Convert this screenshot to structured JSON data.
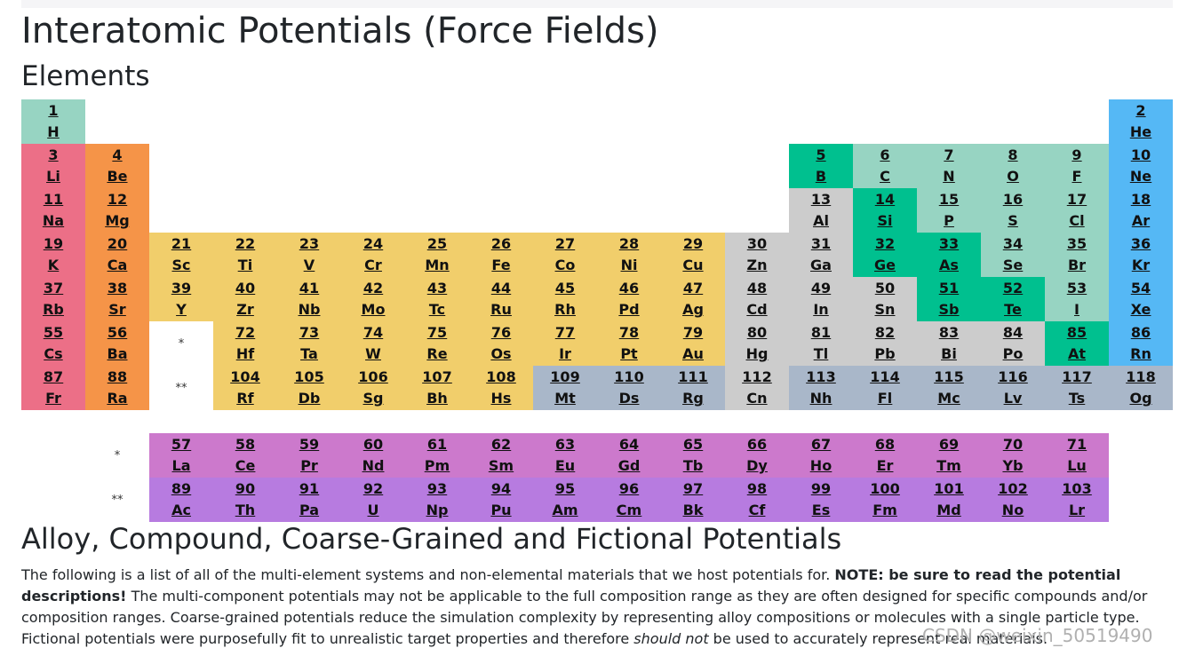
{
  "title": "Interatomic Potentials (Force Fields)",
  "subtitle": "Elements",
  "section2_title": "Alloy, Compound, Coarse-Grained and Fictional Potentials",
  "intro": {
    "part1": "The following is a list of all of the multi-element systems and non-elemental materials that we host potentials for. ",
    "note": "NOTE: be sure to read the potential descriptions!",
    "part2": " The multi-component potentials may not be applicable to the full composition range as they are often designed for specific compounds and/or composition ranges. Coarse-grained potentials reduce the simulation complexity by representing alloy compositions or molecules with a single particle type. Fictional potentials were purposefully fit to unrealistic target properties and therefore ",
    "emph": "should not",
    "part3": " be used to accurately represent real materials."
  },
  "watermark": "CSDN @weixin_50519490",
  "markers": {
    "lanthanide": "*",
    "actinide": "**"
  },
  "colors": {
    "alkali": "#ec6f87",
    "alkaline": "#f59448",
    "transition": "#f1ce6b",
    "post": "#cccccc",
    "metalloid": "#00c08f",
    "nonmetal": "#97d4c2",
    "noble": "#55b8f5",
    "unknown": "#a9b7c9",
    "lanthanide": "#cc79cc",
    "actinide": "#b77be0"
  },
  "elements": [
    {
      "n": "1",
      "s": "H",
      "c": "nonmetal",
      "g": 1,
      "p": 1
    },
    {
      "n": "2",
      "s": "He",
      "c": "noble",
      "g": 18,
      "p": 1
    },
    {
      "n": "3",
      "s": "Li",
      "c": "alkali",
      "g": 1,
      "p": 2
    },
    {
      "n": "4",
      "s": "Be",
      "c": "alkaline",
      "g": 2,
      "p": 2
    },
    {
      "n": "5",
      "s": "B",
      "c": "metalloid",
      "g": 13,
      "p": 2
    },
    {
      "n": "6",
      "s": "C",
      "c": "nonmetal",
      "g": 14,
      "p": 2
    },
    {
      "n": "7",
      "s": "N",
      "c": "nonmetal",
      "g": 15,
      "p": 2
    },
    {
      "n": "8",
      "s": "O",
      "c": "nonmetal",
      "g": 16,
      "p": 2
    },
    {
      "n": "9",
      "s": "F",
      "c": "nonmetal",
      "g": 17,
      "p": 2
    },
    {
      "n": "10",
      "s": "Ne",
      "c": "noble",
      "g": 18,
      "p": 2
    },
    {
      "n": "11",
      "s": "Na",
      "c": "alkali",
      "g": 1,
      "p": 3
    },
    {
      "n": "12",
      "s": "Mg",
      "c": "alkaline",
      "g": 2,
      "p": 3
    },
    {
      "n": "13",
      "s": "Al",
      "c": "post",
      "g": 13,
      "p": 3
    },
    {
      "n": "14",
      "s": "Si",
      "c": "metalloid",
      "g": 14,
      "p": 3
    },
    {
      "n": "15",
      "s": "P",
      "c": "nonmetal",
      "g": 15,
      "p": 3
    },
    {
      "n": "16",
      "s": "S",
      "c": "nonmetal",
      "g": 16,
      "p": 3
    },
    {
      "n": "17",
      "s": "Cl",
      "c": "nonmetal",
      "g": 17,
      "p": 3
    },
    {
      "n": "18",
      "s": "Ar",
      "c": "noble",
      "g": 18,
      "p": 3
    },
    {
      "n": "19",
      "s": "K",
      "c": "alkali",
      "g": 1,
      "p": 4
    },
    {
      "n": "20",
      "s": "Ca",
      "c": "alkaline",
      "g": 2,
      "p": 4
    },
    {
      "n": "21",
      "s": "Sc",
      "c": "transition",
      "g": 3,
      "p": 4
    },
    {
      "n": "22",
      "s": "Ti",
      "c": "transition",
      "g": 4,
      "p": 4
    },
    {
      "n": "23",
      "s": "V",
      "c": "transition",
      "g": 5,
      "p": 4
    },
    {
      "n": "24",
      "s": "Cr",
      "c": "transition",
      "g": 6,
      "p": 4
    },
    {
      "n": "25",
      "s": "Mn",
      "c": "transition",
      "g": 7,
      "p": 4
    },
    {
      "n": "26",
      "s": "Fe",
      "c": "transition",
      "g": 8,
      "p": 4
    },
    {
      "n": "27",
      "s": "Co",
      "c": "transition",
      "g": 9,
      "p": 4
    },
    {
      "n": "28",
      "s": "Ni",
      "c": "transition",
      "g": 10,
      "p": 4
    },
    {
      "n": "29",
      "s": "Cu",
      "c": "transition",
      "g": 11,
      "p": 4
    },
    {
      "n": "30",
      "s": "Zn",
      "c": "post",
      "g": 12,
      "p": 4
    },
    {
      "n": "31",
      "s": "Ga",
      "c": "post",
      "g": 13,
      "p": 4
    },
    {
      "n": "32",
      "s": "Ge",
      "c": "metalloid",
      "g": 14,
      "p": 4
    },
    {
      "n": "33",
      "s": "As",
      "c": "metalloid",
      "g": 15,
      "p": 4
    },
    {
      "n": "34",
      "s": "Se",
      "c": "nonmetal",
      "g": 16,
      "p": 4
    },
    {
      "n": "35",
      "s": "Br",
      "c": "nonmetal",
      "g": 17,
      "p": 4
    },
    {
      "n": "36",
      "s": "Kr",
      "c": "noble",
      "g": 18,
      "p": 4
    },
    {
      "n": "37",
      "s": "Rb",
      "c": "alkali",
      "g": 1,
      "p": 5
    },
    {
      "n": "38",
      "s": "Sr",
      "c": "alkaline",
      "g": 2,
      "p": 5
    },
    {
      "n": "39",
      "s": "Y",
      "c": "transition",
      "g": 3,
      "p": 5
    },
    {
      "n": "40",
      "s": "Zr",
      "c": "transition",
      "g": 4,
      "p": 5
    },
    {
      "n": "41",
      "s": "Nb",
      "c": "transition",
      "g": 5,
      "p": 5
    },
    {
      "n": "42",
      "s": "Mo",
      "c": "transition",
      "g": 6,
      "p": 5
    },
    {
      "n": "43",
      "s": "Tc",
      "c": "transition",
      "g": 7,
      "p": 5
    },
    {
      "n": "44",
      "s": "Ru",
      "c": "transition",
      "g": 8,
      "p": 5
    },
    {
      "n": "45",
      "s": "Rh",
      "c": "transition",
      "g": 9,
      "p": 5
    },
    {
      "n": "46",
      "s": "Pd",
      "c": "transition",
      "g": 10,
      "p": 5
    },
    {
      "n": "47",
      "s": "Ag",
      "c": "transition",
      "g": 11,
      "p": 5
    },
    {
      "n": "48",
      "s": "Cd",
      "c": "post",
      "g": 12,
      "p": 5
    },
    {
      "n": "49",
      "s": "In",
      "c": "post",
      "g": 13,
      "p": 5
    },
    {
      "n": "50",
      "s": "Sn",
      "c": "post",
      "g": 14,
      "p": 5
    },
    {
      "n": "51",
      "s": "Sb",
      "c": "metalloid",
      "g": 15,
      "p": 5
    },
    {
      "n": "52",
      "s": "Te",
      "c": "metalloid",
      "g": 16,
      "p": 5
    },
    {
      "n": "53",
      "s": "I",
      "c": "nonmetal",
      "g": 17,
      "p": 5
    },
    {
      "n": "54",
      "s": "Xe",
      "c": "noble",
      "g": 18,
      "p": 5
    },
    {
      "n": "55",
      "s": "Cs",
      "c": "alkali",
      "g": 1,
      "p": 6
    },
    {
      "n": "56",
      "s": "Ba",
      "c": "alkaline",
      "g": 2,
      "p": 6
    },
    {
      "n": "72",
      "s": "Hf",
      "c": "transition",
      "g": 4,
      "p": 6
    },
    {
      "n": "73",
      "s": "Ta",
      "c": "transition",
      "g": 5,
      "p": 6
    },
    {
      "n": "74",
      "s": "W",
      "c": "transition",
      "g": 6,
      "p": 6
    },
    {
      "n": "75",
      "s": "Re",
      "c": "transition",
      "g": 7,
      "p": 6
    },
    {
      "n": "76",
      "s": "Os",
      "c": "transition",
      "g": 8,
      "p": 6
    },
    {
      "n": "77",
      "s": "Ir",
      "c": "transition",
      "g": 9,
      "p": 6
    },
    {
      "n": "78",
      "s": "Pt",
      "c": "transition",
      "g": 10,
      "p": 6
    },
    {
      "n": "79",
      "s": "Au",
      "c": "transition",
      "g": 11,
      "p": 6
    },
    {
      "n": "80",
      "s": "Hg",
      "c": "post",
      "g": 12,
      "p": 6
    },
    {
      "n": "81",
      "s": "Tl",
      "c": "post",
      "g": 13,
      "p": 6
    },
    {
      "n": "82",
      "s": "Pb",
      "c": "post",
      "g": 14,
      "p": 6
    },
    {
      "n": "83",
      "s": "Bi",
      "c": "post",
      "g": 15,
      "p": 6
    },
    {
      "n": "84",
      "s": "Po",
      "c": "post",
      "g": 16,
      "p": 6
    },
    {
      "n": "85",
      "s": "At",
      "c": "metalloid",
      "g": 17,
      "p": 6
    },
    {
      "n": "86",
      "s": "Rn",
      "c": "noble",
      "g": 18,
      "p": 6
    },
    {
      "n": "87",
      "s": "Fr",
      "c": "alkali",
      "g": 1,
      "p": 7
    },
    {
      "n": "88",
      "s": "Ra",
      "c": "alkaline",
      "g": 2,
      "p": 7
    },
    {
      "n": "104",
      "s": "Rf",
      "c": "transition",
      "g": 4,
      "p": 7
    },
    {
      "n": "105",
      "s": "Db",
      "c": "transition",
      "g": 5,
      "p": 7
    },
    {
      "n": "106",
      "s": "Sg",
      "c": "transition",
      "g": 6,
      "p": 7
    },
    {
      "n": "107",
      "s": "Bh",
      "c": "transition",
      "g": 7,
      "p": 7
    },
    {
      "n": "108",
      "s": "Hs",
      "c": "transition",
      "g": 8,
      "p": 7
    },
    {
      "n": "109",
      "s": "Mt",
      "c": "unknown",
      "g": 9,
      "p": 7
    },
    {
      "n": "110",
      "s": "Ds",
      "c": "unknown",
      "g": 10,
      "p": 7
    },
    {
      "n": "111",
      "s": "Rg",
      "c": "unknown",
      "g": 11,
      "p": 7
    },
    {
      "n": "112",
      "s": "Cn",
      "c": "post",
      "g": 12,
      "p": 7
    },
    {
      "n": "113",
      "s": "Nh",
      "c": "unknown",
      "g": 13,
      "p": 7
    },
    {
      "n": "114",
      "s": "Fl",
      "c": "unknown",
      "g": 14,
      "p": 7
    },
    {
      "n": "115",
      "s": "Mc",
      "c": "unknown",
      "g": 15,
      "p": 7
    },
    {
      "n": "116",
      "s": "Lv",
      "c": "unknown",
      "g": 16,
      "p": 7
    },
    {
      "n": "117",
      "s": "Ts",
      "c": "unknown",
      "g": 17,
      "p": 7
    },
    {
      "n": "118",
      "s": "Og",
      "c": "unknown",
      "g": 18,
      "p": 7
    },
    {
      "n": "57",
      "s": "La",
      "c": "lanthanide",
      "g": 3,
      "p": 8
    },
    {
      "n": "58",
      "s": "Ce",
      "c": "lanthanide",
      "g": 4,
      "p": 8
    },
    {
      "n": "59",
      "s": "Pr",
      "c": "lanthanide",
      "g": 5,
      "p": 8
    },
    {
      "n": "60",
      "s": "Nd",
      "c": "lanthanide",
      "g": 6,
      "p": 8
    },
    {
      "n": "61",
      "s": "Pm",
      "c": "lanthanide",
      "g": 7,
      "p": 8
    },
    {
      "n": "62",
      "s": "Sm",
      "c": "lanthanide",
      "g": 8,
      "p": 8
    },
    {
      "n": "63",
      "s": "Eu",
      "c": "lanthanide",
      "g": 9,
      "p": 8
    },
    {
      "n": "64",
      "s": "Gd",
      "c": "lanthanide",
      "g": 10,
      "p": 8
    },
    {
      "n": "65",
      "s": "Tb",
      "c": "lanthanide",
      "g": 11,
      "p": 8
    },
    {
      "n": "66",
      "s": "Dy",
      "c": "lanthanide",
      "g": 12,
      "p": 8
    },
    {
      "n": "67",
      "s": "Ho",
      "c": "lanthanide",
      "g": 13,
      "p": 8
    },
    {
      "n": "68",
      "s": "Er",
      "c": "lanthanide",
      "g": 14,
      "p": 8
    },
    {
      "n": "69",
      "s": "Tm",
      "c": "lanthanide",
      "g": 15,
      "p": 8
    },
    {
      "n": "70",
      "s": "Yb",
      "c": "lanthanide",
      "g": 16,
      "p": 8
    },
    {
      "n": "71",
      "s": "Lu",
      "c": "lanthanide",
      "g": 17,
      "p": 8
    },
    {
      "n": "89",
      "s": "Ac",
      "c": "actinide",
      "g": 3,
      "p": 9
    },
    {
      "n": "90",
      "s": "Th",
      "c": "actinide",
      "g": 4,
      "p": 9
    },
    {
      "n": "91",
      "s": "Pa",
      "c": "actinide",
      "g": 5,
      "p": 9
    },
    {
      "n": "92",
      "s": "U",
      "c": "actinide",
      "g": 6,
      "p": 9
    },
    {
      "n": "93",
      "s": "Np",
      "c": "actinide",
      "g": 7,
      "p": 9
    },
    {
      "n": "94",
      "s": "Pu",
      "c": "actinide",
      "g": 8,
      "p": 9
    },
    {
      "n": "95",
      "s": "Am",
      "c": "actinide",
      "g": 9,
      "p": 9
    },
    {
      "n": "96",
      "s": "Cm",
      "c": "actinide",
      "g": 10,
      "p": 9
    },
    {
      "n": "97",
      "s": "Bk",
      "c": "actinide",
      "g": 11,
      "p": 9
    },
    {
      "n": "98",
      "s": "Cf",
      "c": "actinide",
      "g": 12,
      "p": 9
    },
    {
      "n": "99",
      "s": "Es",
      "c": "actinide",
      "g": 13,
      "p": 9
    },
    {
      "n": "100",
      "s": "Fm",
      "c": "actinide",
      "g": 14,
      "p": 9
    },
    {
      "n": "101",
      "s": "Md",
      "c": "actinide",
      "g": 15,
      "p": 9
    },
    {
      "n": "102",
      "s": "No",
      "c": "actinide",
      "g": 16,
      "p": 9
    },
    {
      "n": "103",
      "s": "Lr",
      "c": "actinide",
      "g": 17,
      "p": 9
    }
  ]
}
